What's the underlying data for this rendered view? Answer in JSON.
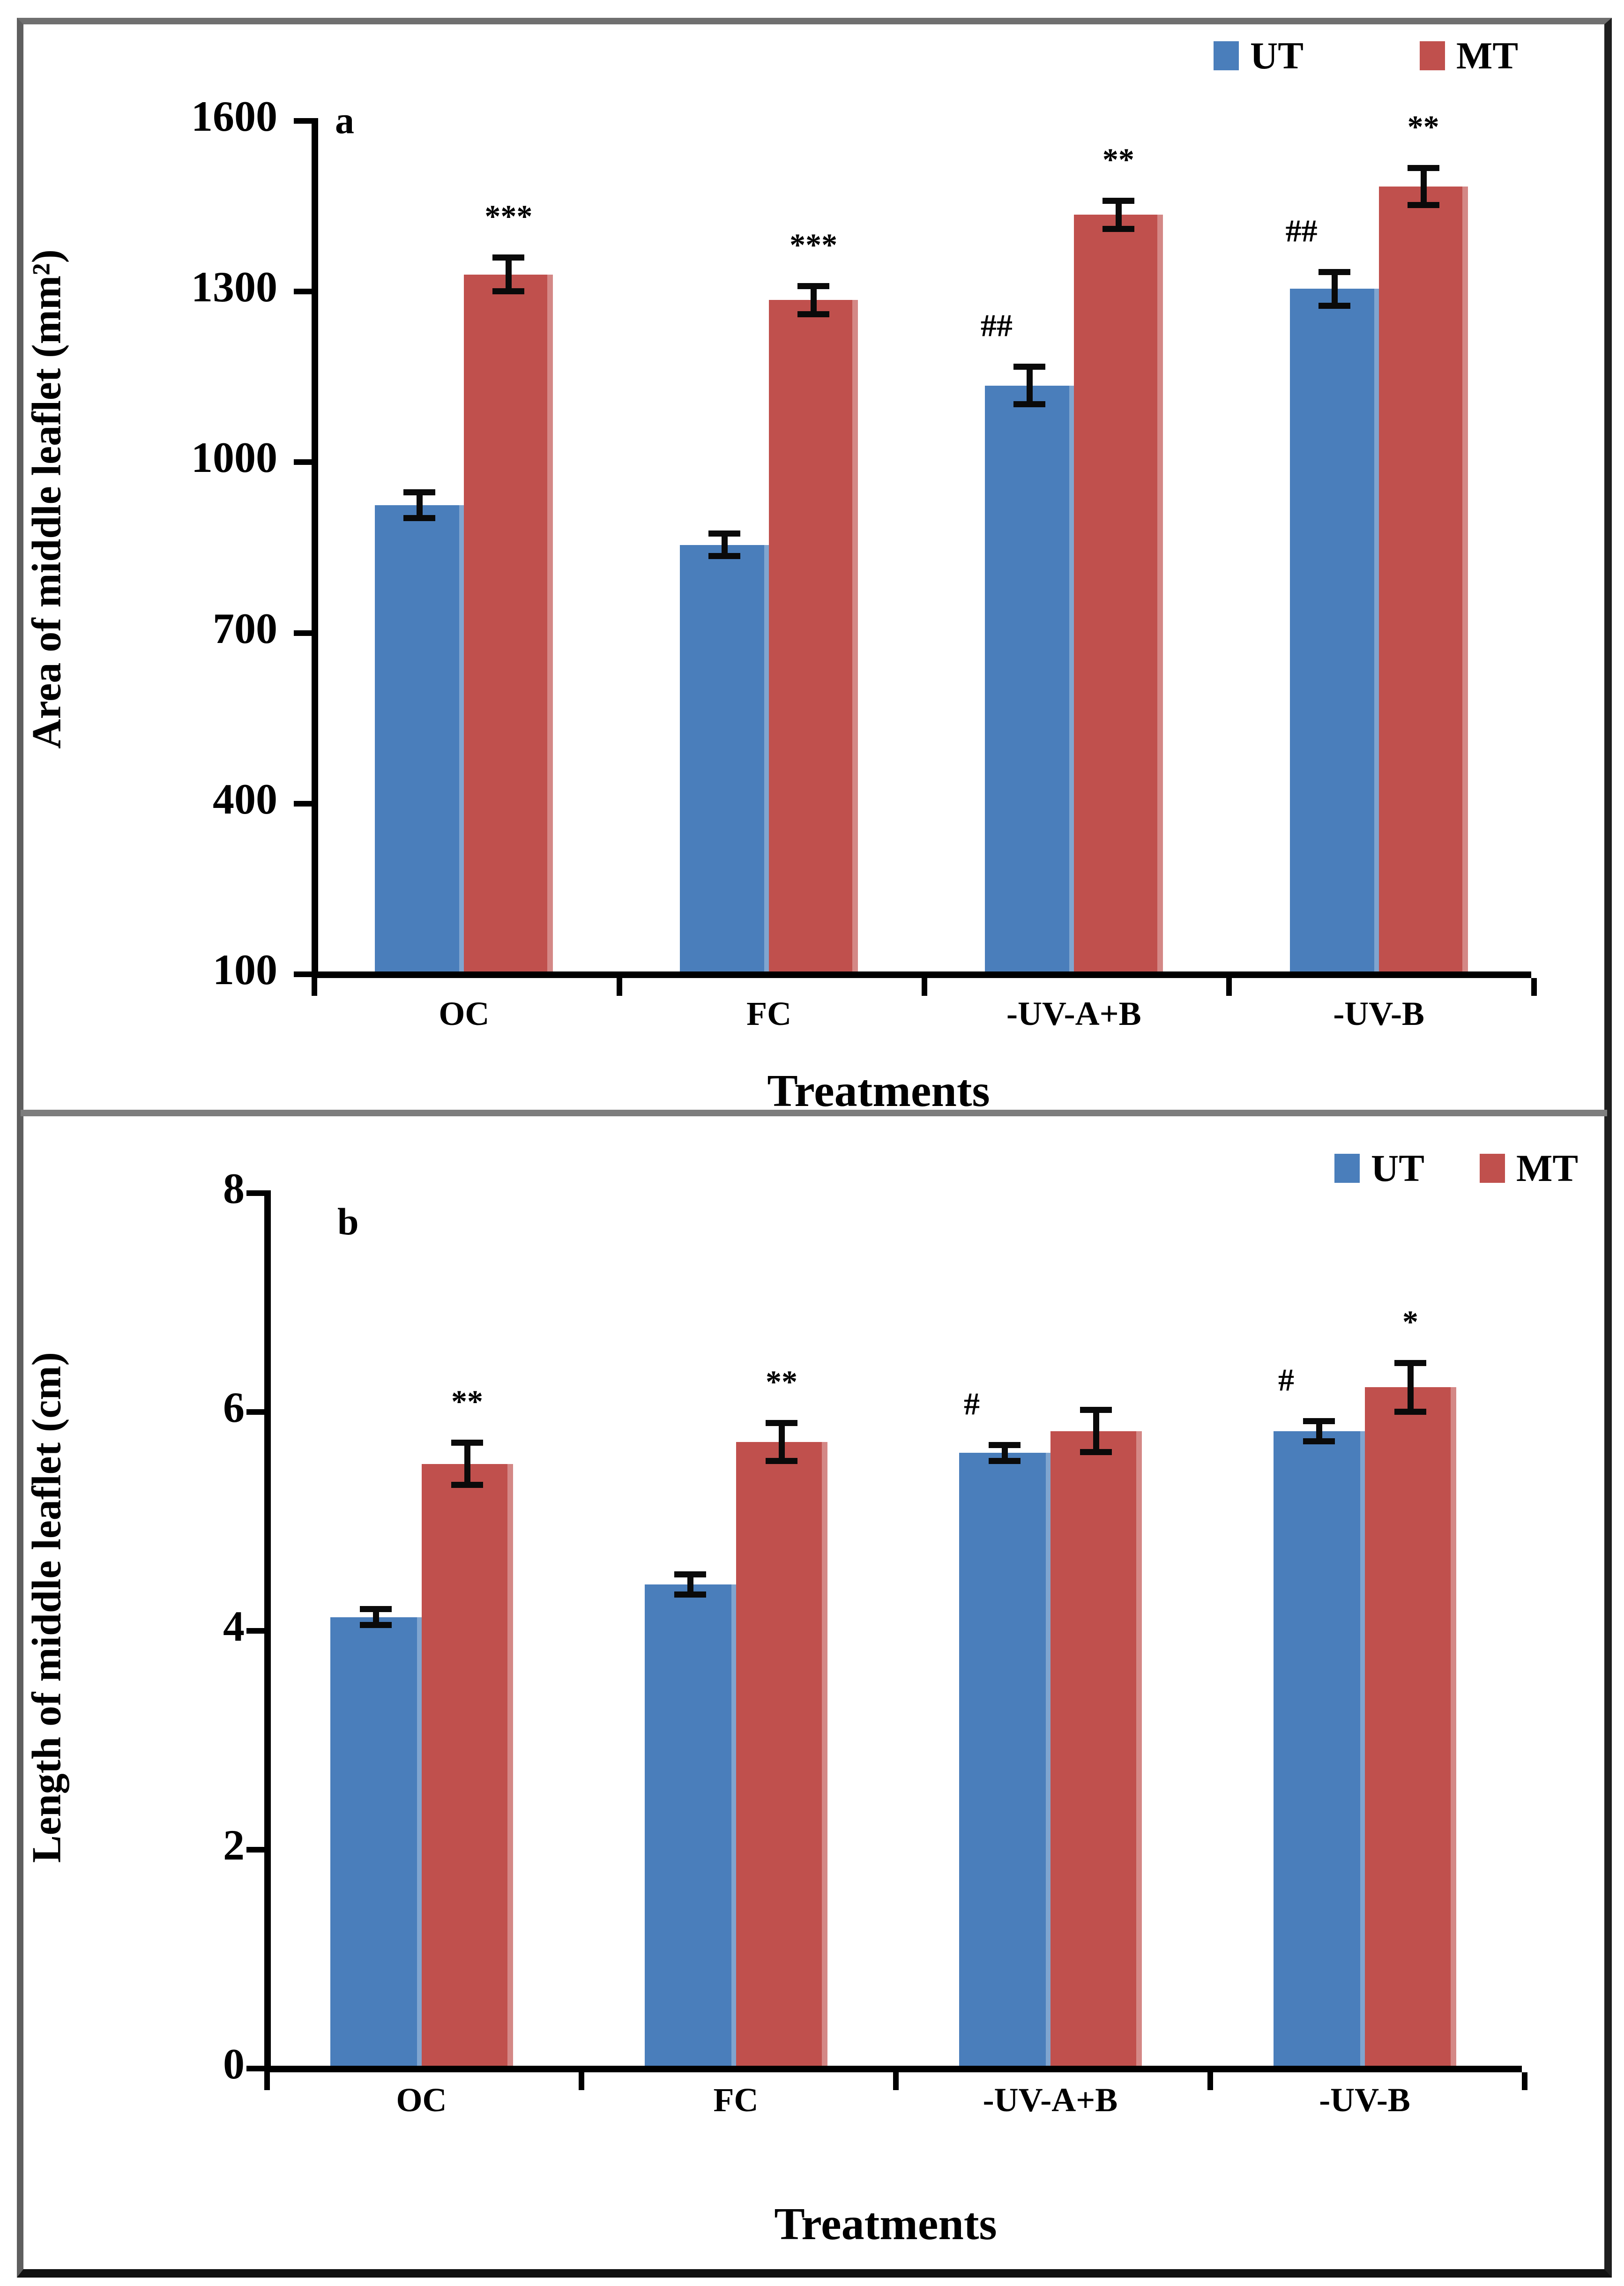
{
  "legend": {
    "series": [
      "UT",
      "MT"
    ]
  },
  "colors": {
    "ut_blue": "#4A7EBB",
    "mt_red": "#C0504D",
    "error_bar": "#0a0a0a"
  },
  "chart_data": [
    {
      "type": "bar",
      "panel_label": "a",
      "ylabel": "Area of middle leaflet (mm²)",
      "xlabel": "Treatments",
      "ylim": [
        100,
        1600
      ],
      "yticks": [
        1600,
        1300,
        1000,
        700,
        400,
        100
      ],
      "categories": [
        "OC",
        "FC",
        "-UV-A+B",
        "-UV-B"
      ],
      "grid": false,
      "legend_position": "top-right",
      "legend_entries": [
        "UT",
        "MT"
      ],
      "series": [
        {
          "name": "UT",
          "values": [
            920,
            850,
            1130,
            1300
          ],
          "errors": [
            28,
            25,
            38,
            35
          ],
          "annotations": [
            "",
            "",
            "##",
            "##"
          ]
        },
        {
          "name": "MT",
          "values": [
            1325,
            1280,
            1430,
            1480
          ],
          "errors": [
            35,
            30,
            30,
            38
          ],
          "annotations": [
            "***",
            "***",
            "**",
            "**"
          ]
        }
      ]
    },
    {
      "type": "bar",
      "panel_label": "b",
      "ylabel": "Length of middle leaflet (cm)",
      "xlabel": "Treatments",
      "ylim": [
        0,
        8
      ],
      "yticks": [
        8,
        6,
        4,
        2,
        0
      ],
      "categories": [
        "OC",
        "FC",
        "-UV-A+B",
        "-UV-B"
      ],
      "grid": false,
      "legend_position": "top-right",
      "legend_entries": [
        "UT",
        "MT"
      ],
      "series": [
        {
          "name": "UT",
          "values": [
            4.1,
            4.4,
            5.6,
            5.8
          ],
          "errors": [
            0.1,
            0.12,
            0.1,
            0.12
          ],
          "annotations": [
            "",
            "",
            "#",
            "#"
          ]
        },
        {
          "name": "MT",
          "values": [
            5.5,
            5.7,
            5.8,
            6.2
          ],
          "errors": [
            0.22,
            0.2,
            0.22,
            0.25
          ],
          "annotations": [
            "**",
            "**",
            "",
            "*"
          ]
        }
      ]
    }
  ]
}
